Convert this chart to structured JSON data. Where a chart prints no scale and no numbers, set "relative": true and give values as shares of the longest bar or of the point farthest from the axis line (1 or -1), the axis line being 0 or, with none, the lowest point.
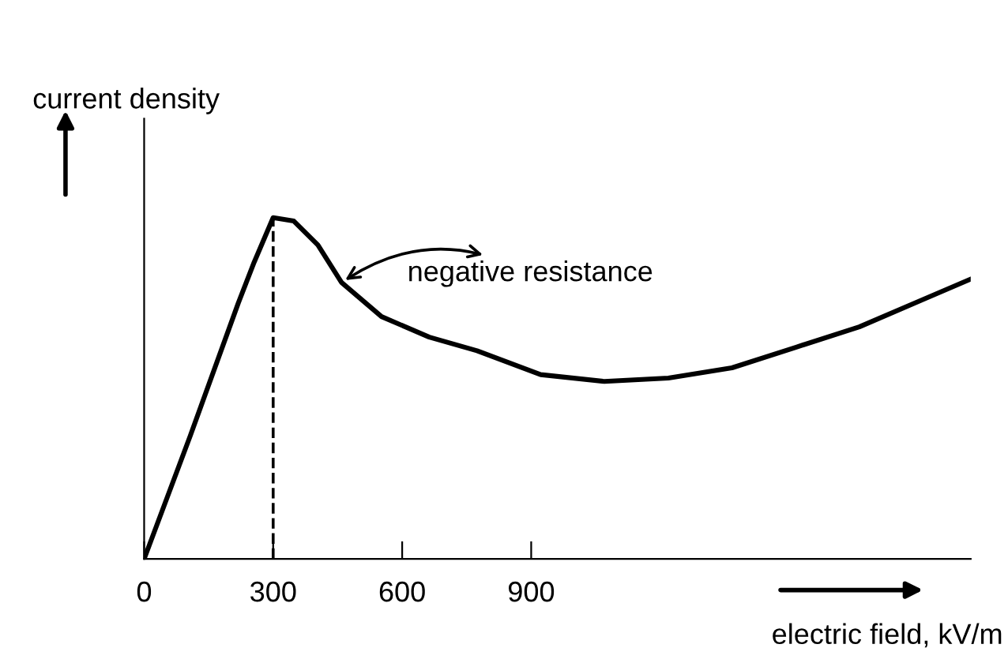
{
  "chart_data": {
    "type": "line",
    "relative": true,
    "xlabel": "electric field, kV/m",
    "ylabel": "current density",
    "x": [
      0,
      107,
      219,
      256,
      300,
      348,
      404,
      459,
      552,
      663,
      774,
      922,
      1070,
      1219,
      1367,
      1515,
      1663,
      1811,
      1922
    ],
    "series": [
      {
        "color": "#000000",
        "values": [
          0,
          0.36,
          0.75,
          0.87,
          1.0,
          0.99,
          0.92,
          0.81,
          0.71,
          0.65,
          0.61,
          0.54,
          0.52,
          0.53,
          0.56,
          0.62,
          0.68,
          0.76,
          0.82
        ]
      }
    ],
    "xlim": [
      0,
      1922
    ],
    "xticks": [
      0,
      300,
      600,
      900
    ],
    "ref_lines": [
      {
        "axis": "x",
        "value": 300,
        "line_style": "dashed",
        "color": "#000000"
      }
    ],
    "annotations": [
      {
        "text": "negative resistance",
        "x": 459,
        "y": 0.81
      }
    ],
    "grid": false,
    "legend": false,
    "marker": "none",
    "line_style": "solid"
  }
}
